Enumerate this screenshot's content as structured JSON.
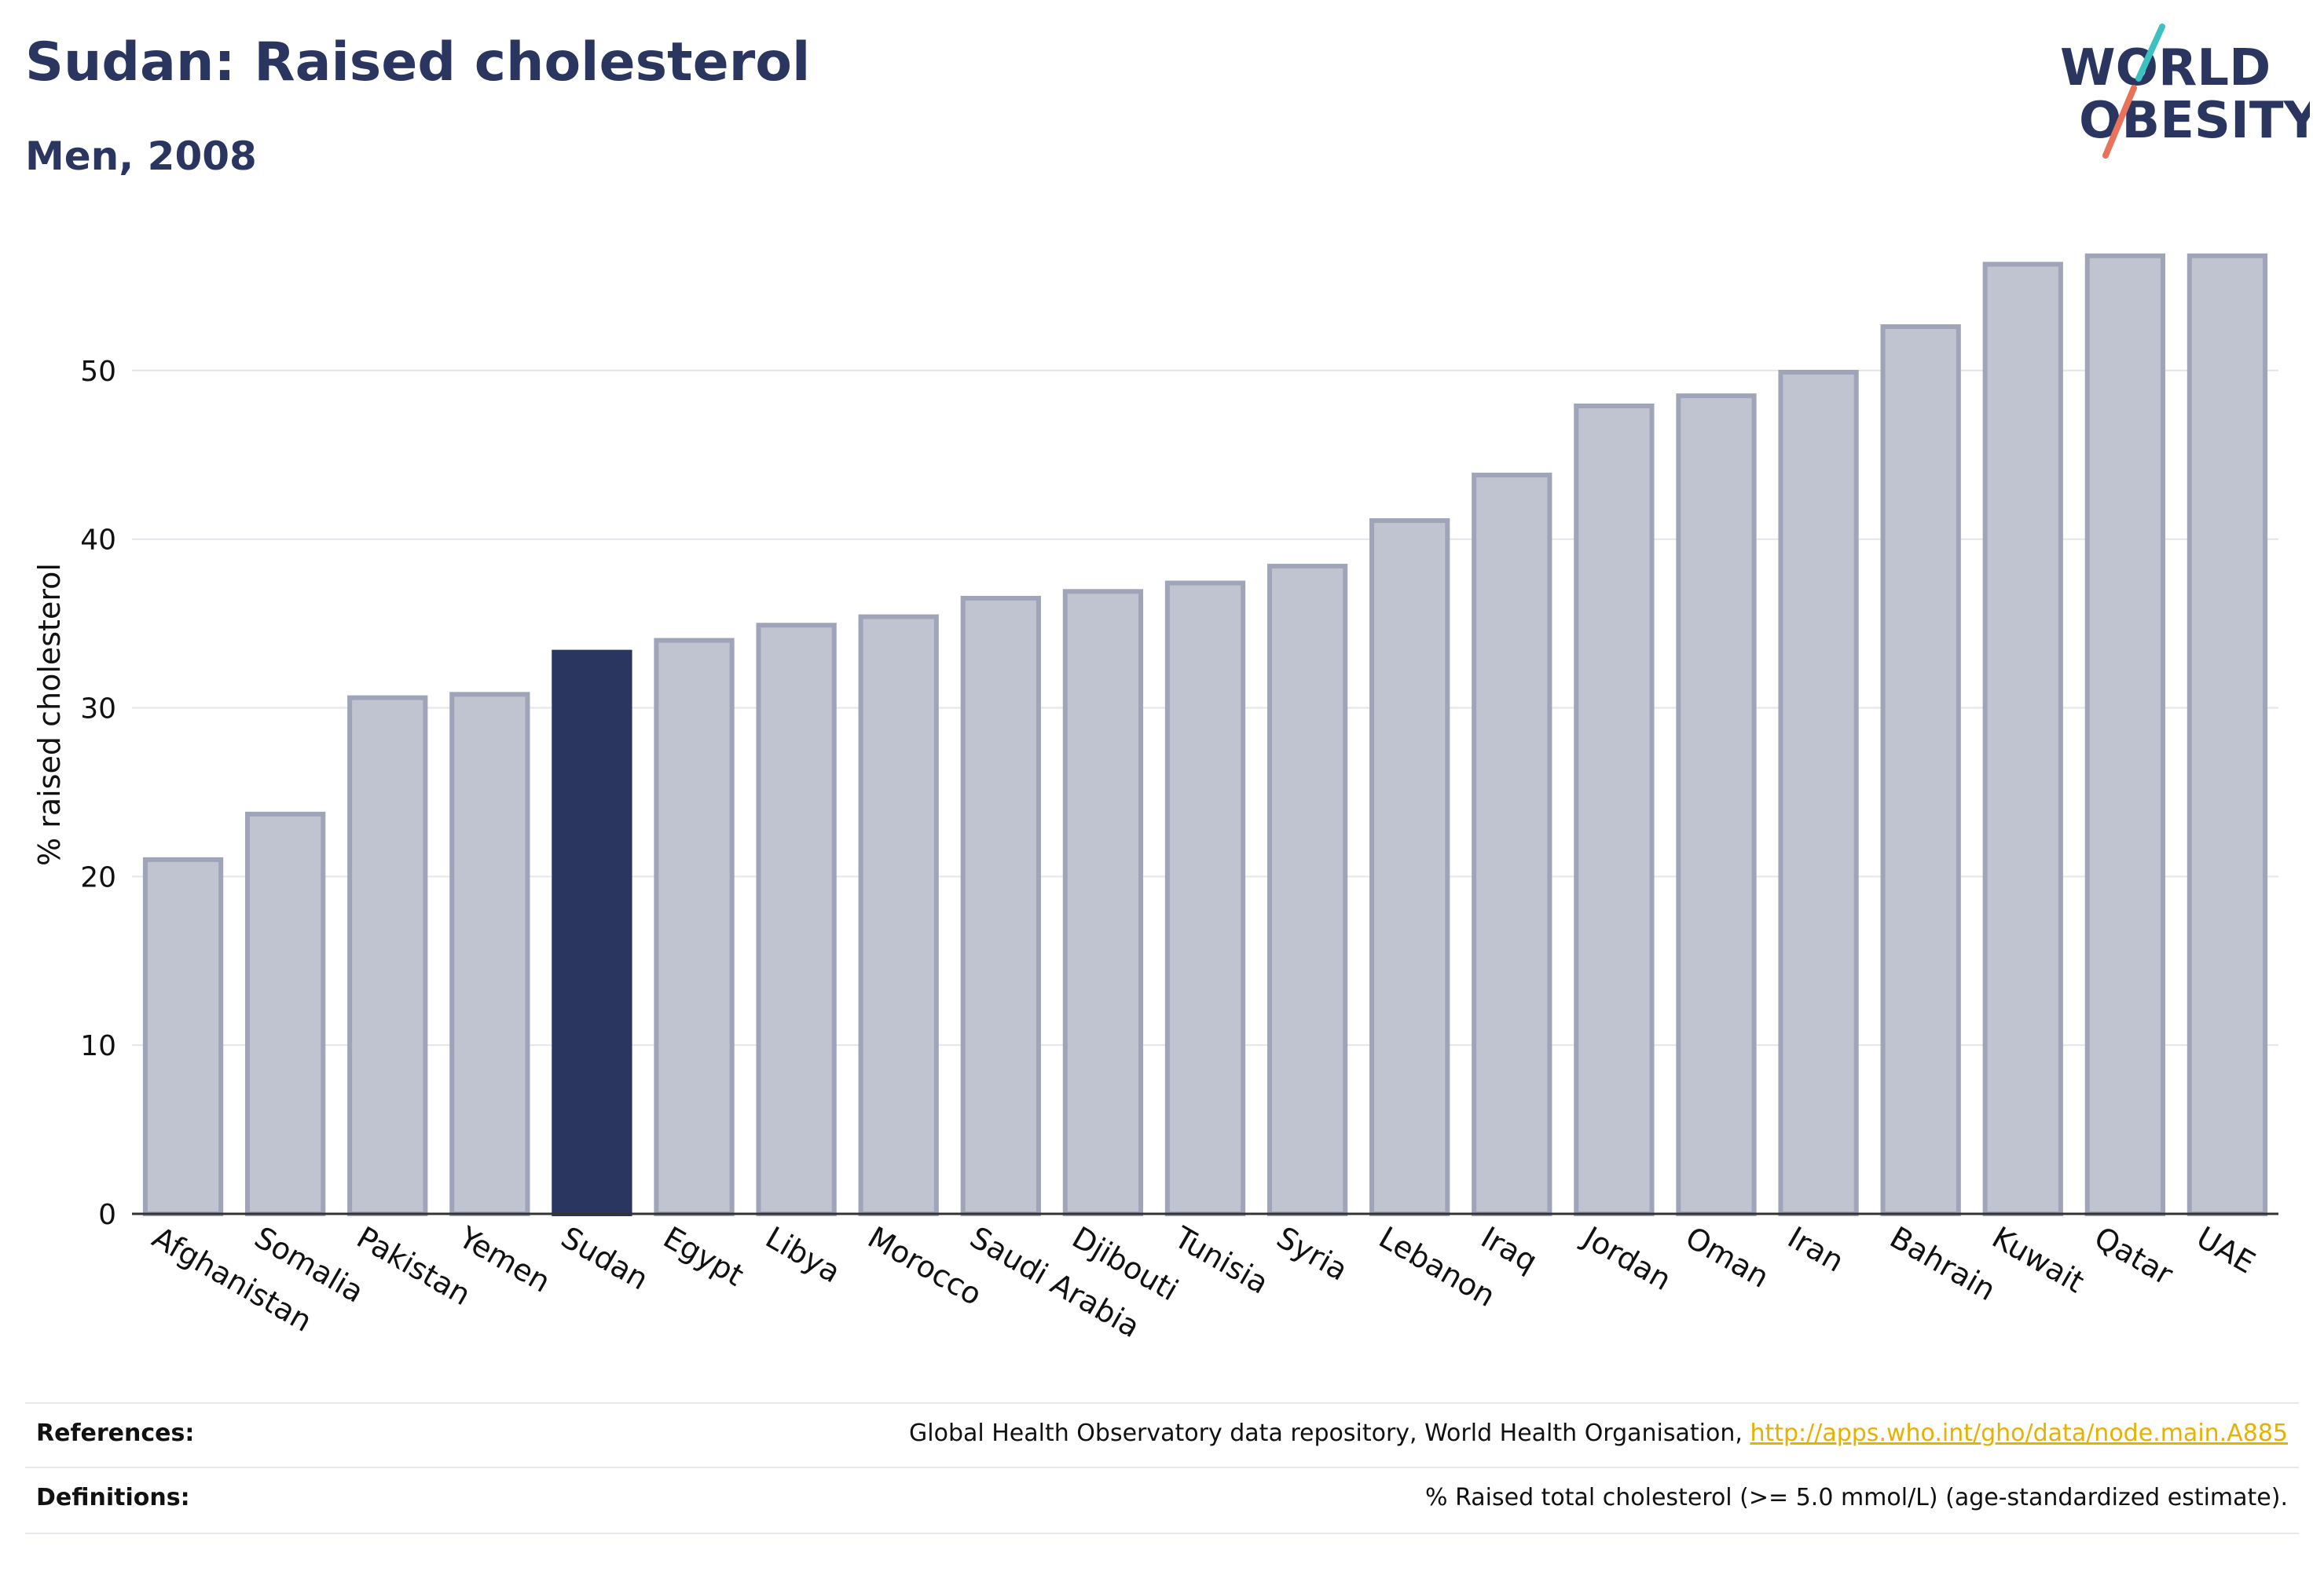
{
  "header": {
    "title": "Sudan: Raised cholesterol",
    "subtitle": "Men, 2008"
  },
  "logo": {
    "line1": "WORLD",
    "line2": "OBESITY"
  },
  "footer": {
    "references_label": "References:",
    "references_text": "Global Health Observatory data repository, World Health Organisation, ",
    "references_link": "http://apps.who.int/gho/data/node.main.A885",
    "definitions_label": "Definitions:",
    "definitions_text": "% Raised total cholesterol (>= 5.0 mmol/L) (age-standardized estimate)."
  },
  "colors": {
    "highlight": "#2b3660",
    "bar_fill": "#c0c3d0",
    "bar_stroke": "#9fa4b9",
    "grid": "#e4e6ec",
    "logo_red": "#e8735a",
    "logo_teal": "#3cc0c0"
  },
  "chart_data": {
    "type": "bar",
    "ylabel": "% raised cholesterol",
    "ylim": [
      0,
      58
    ],
    "yticks": [
      0,
      10,
      20,
      30,
      40,
      50
    ],
    "grid": true,
    "highlight": "Sudan",
    "categories": [
      "Afghanistan",
      "Somalia",
      "Pakistan",
      "Yemen",
      "Sudan",
      "Egypt",
      "Libya",
      "Morocco",
      "Saudi Arabia",
      "Djibouti",
      "Tunisia",
      "Syria",
      "Lebanon",
      "Iraq",
      "Jordan",
      "Oman",
      "Iran",
      "Bahrain",
      "Kuwait",
      "Qatar",
      "UAE"
    ],
    "values": [
      21.0,
      23.7,
      30.6,
      30.8,
      33.3,
      34.0,
      34.9,
      35.4,
      36.5,
      36.9,
      37.4,
      38.4,
      41.1,
      43.8,
      47.9,
      48.5,
      49.9,
      52.6,
      56.3,
      56.8,
      56.8
    ]
  }
}
